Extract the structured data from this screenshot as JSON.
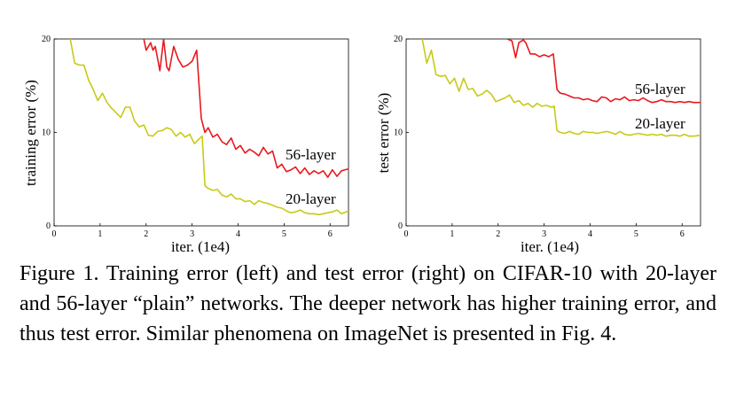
{
  "chart_data": [
    {
      "type": "line",
      "xlabel": "iter. (1e4)",
      "ylabel": "training error (%)",
      "xlim": [
        0,
        6.4
      ],
      "ylim": [
        0,
        20
      ],
      "xticks": [
        "0",
        "1",
        "2",
        "3",
        "4",
        "5",
        "6"
      ],
      "yticks": [
        "0",
        "10",
        "20"
      ],
      "legend": "inline labels next to lines",
      "series": [
        {
          "name": "56-layer",
          "color": "#e8191d",
          "x": [
            1.95,
            2.0,
            2.1,
            2.15,
            2.2,
            2.3,
            2.38,
            2.45,
            2.5,
            2.6,
            2.7,
            2.8,
            2.9,
            3.0,
            3.1,
            3.2,
            3.28,
            3.35,
            3.45,
            3.55,
            3.65,
            3.75,
            3.85,
            3.95,
            4.05,
            4.15,
            4.25,
            4.35,
            4.45,
            4.55,
            4.65,
            4.75,
            4.85,
            4.95,
            5.05,
            5.15,
            5.25,
            5.35,
            5.45,
            5.55,
            5.65,
            5.75,
            5.85,
            5.95,
            6.05,
            6.15,
            6.25,
            6.4
          ],
          "values": [
            20.0,
            18.8,
            19.6,
            18.8,
            19.2,
            16.6,
            20.0,
            17.0,
            16.6,
            19.2,
            17.8,
            17.0,
            17.2,
            17.6,
            18.8,
            11.5,
            10.0,
            10.5,
            9.5,
            9.8,
            9.0,
            8.7,
            9.4,
            8.2,
            8.6,
            7.8,
            8.2,
            7.9,
            7.5,
            8.4,
            7.7,
            8.0,
            6.2,
            6.6,
            5.8,
            6.0,
            6.3,
            5.6,
            6.2,
            5.5,
            5.9,
            5.6,
            5.9,
            5.2,
            6.0,
            5.3,
            5.9,
            6.1
          ]
        },
        {
          "name": "20-layer",
          "color": "#c8ca16",
          "x": [
            0.35,
            0.45,
            0.55,
            0.65,
            0.75,
            0.85,
            0.95,
            1.05,
            1.15,
            1.25,
            1.35,
            1.45,
            1.55,
            1.65,
            1.75,
            1.85,
            1.95,
            2.05,
            2.15,
            2.25,
            2.35,
            2.45,
            2.55,
            2.65,
            2.75,
            2.85,
            2.95,
            3.05,
            3.15,
            3.22,
            3.28,
            3.35,
            3.45,
            3.55,
            3.65,
            3.75,
            3.85,
            3.95,
            4.05,
            4.15,
            4.25,
            4.35,
            4.45,
            4.55,
            4.65,
            4.75,
            4.85,
            4.95,
            5.05,
            5.15,
            5.25,
            5.35,
            5.45,
            5.55,
            5.65,
            5.75,
            5.85,
            5.95,
            6.05,
            6.15,
            6.25,
            6.4
          ],
          "values": [
            20.0,
            17.4,
            17.2,
            17.2,
            15.6,
            14.6,
            13.4,
            14.2,
            13.2,
            12.6,
            12.1,
            11.6,
            12.7,
            12.7,
            11.2,
            10.6,
            10.8,
            9.7,
            9.6,
            10.1,
            10.2,
            10.5,
            10.3,
            9.6,
            10.0,
            9.5,
            9.8,
            8.8,
            9.3,
            9.6,
            4.3,
            4.0,
            3.8,
            3.9,
            3.3,
            3.1,
            3.4,
            2.9,
            2.9,
            2.6,
            2.7,
            2.3,
            2.7,
            2.5,
            2.4,
            2.2,
            2.0,
            1.9,
            1.6,
            1.4,
            1.5,
            1.7,
            1.4,
            1.3,
            1.3,
            1.2,
            1.3,
            1.4,
            1.5,
            1.7,
            1.3,
            1.6
          ]
        }
      ]
    },
    {
      "type": "line",
      "xlabel": "iter. (1e4)",
      "ylabel": "test error (%)",
      "xlim": [
        0,
        6.4
      ],
      "ylim": [
        0,
        20
      ],
      "xticks": [
        "0",
        "1",
        "2",
        "3",
        "4",
        "5",
        "6"
      ],
      "yticks": [
        "0",
        "10",
        "20"
      ],
      "legend": "inline labels next to lines",
      "series": [
        {
          "name": "56-layer",
          "color": "#e8191d",
          "x": [
            2.2,
            2.3,
            2.38,
            2.45,
            2.55,
            2.6,
            2.7,
            2.8,
            2.9,
            3.0,
            3.1,
            3.2,
            3.28,
            3.35,
            3.45,
            3.55,
            3.65,
            3.75,
            3.85,
            3.95,
            4.05,
            4.15,
            4.25,
            4.35,
            4.45,
            4.55,
            4.65,
            4.75,
            4.85,
            4.95,
            5.05,
            5.15,
            5.25,
            5.35,
            5.45,
            5.55,
            5.65,
            5.75,
            5.85,
            5.95,
            6.05,
            6.15,
            6.25,
            6.4
          ],
          "values": [
            20.0,
            19.8,
            18.0,
            19.6,
            19.9,
            19.6,
            18.4,
            18.4,
            18.1,
            18.3,
            18.1,
            18.4,
            14.6,
            14.2,
            14.1,
            13.9,
            13.7,
            13.7,
            13.5,
            13.6,
            13.4,
            13.3,
            13.8,
            13.7,
            13.3,
            13.6,
            13.5,
            13.8,
            13.4,
            13.5,
            13.4,
            13.7,
            13.4,
            13.2,
            13.3,
            13.5,
            13.3,
            13.3,
            13.2,
            13.3,
            13.2,
            13.3,
            13.2,
            13.2
          ]
        },
        {
          "name": "20-layer",
          "color": "#c8ca16",
          "x": [
            0.35,
            0.45,
            0.55,
            0.65,
            0.75,
            0.85,
            0.95,
            1.05,
            1.15,
            1.25,
            1.35,
            1.45,
            1.55,
            1.65,
            1.75,
            1.85,
            1.95,
            2.05,
            2.15,
            2.25,
            2.35,
            2.45,
            2.55,
            2.65,
            2.75,
            2.85,
            2.95,
            3.05,
            3.15,
            3.22,
            3.28,
            3.35,
            3.45,
            3.55,
            3.65,
            3.75,
            3.85,
            3.95,
            4.05,
            4.15,
            4.25,
            4.35,
            4.45,
            4.55,
            4.65,
            4.75,
            4.85,
            4.95,
            5.05,
            5.15,
            5.25,
            5.35,
            5.45,
            5.55,
            5.65,
            5.75,
            5.85,
            5.95,
            6.05,
            6.15,
            6.25,
            6.4
          ],
          "values": [
            20.0,
            17.4,
            18.8,
            16.2,
            16.0,
            16.1,
            15.2,
            15.8,
            14.4,
            15.8,
            14.6,
            14.7,
            13.9,
            14.1,
            14.5,
            14.1,
            13.3,
            13.5,
            13.7,
            14.0,
            13.2,
            13.4,
            12.9,
            13.1,
            12.7,
            13.1,
            12.8,
            12.9,
            12.7,
            12.8,
            10.2,
            10.0,
            9.9,
            10.1,
            9.9,
            9.8,
            10.1,
            10.0,
            10.0,
            9.9,
            10.0,
            10.1,
            10.0,
            9.8,
            10.1,
            9.8,
            9.7,
            9.8,
            9.9,
            9.8,
            9.7,
            9.8,
            9.7,
            9.8,
            9.6,
            9.7,
            9.7,
            9.6,
            9.8,
            9.6,
            9.6,
            9.7
          ]
        }
      ]
    }
  ],
  "caption": {
    "text": "Figure 1. Training error (left) and test error (right) on CIFAR-10 with 20-layer and 56-layer “plain” networks. The deeper network has higher training error, and thus test error. Similar phenomena on ImageNet is presented in Fig. 4."
  }
}
